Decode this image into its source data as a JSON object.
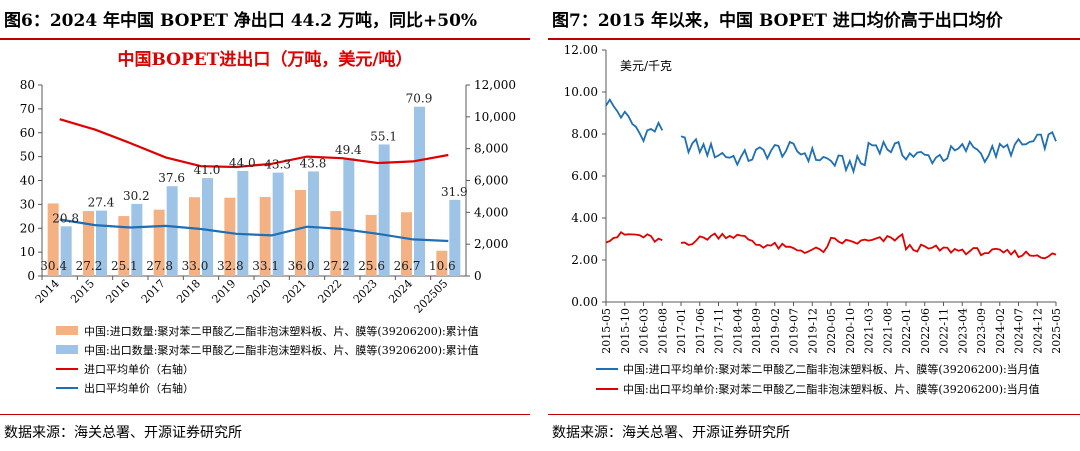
{
  "left": {
    "figure_title": "图6：2024 年中国 BOPET 净出口 44.2 万吨，同比+50%",
    "source": "数据来源：海关总署、开源证券研究所"
  },
  "right": {
    "figure_title": "图7：2015 年以来，中国 BOPET 进口均价高于出口均价",
    "source": "数据来源：海关总署、开源证券研究所"
  },
  "chart_data": [
    {
      "type": "bar",
      "title": "中国BOPET进出口（万吨，美元/吨）",
      "categories": [
        "2014",
        "2015",
        "2016",
        "2017",
        "2018",
        "2019",
        "2020",
        "2021",
        "2022",
        "2023",
        "2024",
        "202505"
      ],
      "ylim": [
        0,
        80
      ],
      "y2lim": [
        0,
        12000
      ],
      "yticks": [
        "0",
        "10",
        "20",
        "30",
        "40",
        "50",
        "60",
        "70",
        "80"
      ],
      "y2ticks": [
        "0",
        "2,000",
        "4,000",
        "6,000",
        "8,000",
        "10,000",
        "12,000"
      ],
      "grid": false,
      "legend_position": "bottom",
      "series": [
        {
          "name": "中国:进口数量:聚对苯二甲酸乙二酯非泡沫塑料板、片、膜等(39206200):累计值",
          "kind": "bar",
          "axis": "left",
          "color": "#f4b183",
          "values": [
            30.4,
            27.2,
            25.1,
            27.8,
            33.0,
            32.8,
            33.1,
            36.0,
            27.2,
            25.6,
            26.7,
            10.6
          ]
        },
        {
          "name": "中国:出口数量:聚对苯二甲酸乙二酯非泡沫塑料板、片、膜等(39206200):累计值",
          "kind": "bar",
          "axis": "left",
          "color": "#9dc3e6",
          "values": [
            20.8,
            27.4,
            30.2,
            37.6,
            41.0,
            44.0,
            43.3,
            43.8,
            49.4,
            55.1,
            70.9,
            31.9
          ]
        },
        {
          "name": "进口平均单价（右轴）",
          "kind": "line",
          "axis": "right",
          "color": "#e00000",
          "values": [
            9850,
            9200,
            8350,
            7450,
            6900,
            6850,
            7050,
            7500,
            7400,
            7100,
            7200,
            7600
          ]
        },
        {
          "name": "出口平均单价（右轴）",
          "kind": "line",
          "axis": "right",
          "color": "#1f6fb5",
          "values": [
            3550,
            3200,
            3050,
            3150,
            2950,
            2650,
            2550,
            3100,
            2950,
            2650,
            2300,
            2200
          ]
        }
      ]
    },
    {
      "type": "line",
      "ylabel": "美元/千克",
      "ylim": [
        0,
        12
      ],
      "yticks": [
        "0.00",
        "2.00",
        "4.00",
        "6.00",
        "8.00",
        "10.00",
        "12.00"
      ],
      "xticks": [
        "2015-05",
        "2015-10",
        "2016-03",
        "2016-08",
        "2017-01",
        "2017-06",
        "2017-11",
        "2018-04",
        "2018-09",
        "2019-02",
        "2019-07",
        "2019-12",
        "2020-05",
        "2020-10",
        "2021-03",
        "2021-08",
        "2022-01",
        "2022-06",
        "2022-11",
        "2023-04",
        "2023-09",
        "2024-02",
        "2024-07",
        "2024-12",
        "2025-05"
      ],
      "grid": false,
      "legend_position": "bottom",
      "note": "Monthly values approximate (estimated from gridlines); points shown from 2015-05 to 2025-05 with a gap at 2016-09 to 2016-12.",
      "series": [
        {
          "name": "中国:进口平均单价:聚对苯二甲酸乙二酯非泡沫塑料板、片、膜等(39206200):当月值",
          "color": "#1f6fb5",
          "start": 9.6
        },
        {
          "name": "中国:出口平均单价:聚对苯二甲酸乙二酯非泡沫塑料板、片、膜等(39206200):当月值",
          "color": "#e00000",
          "start": 3.0
        }
      ]
    }
  ]
}
